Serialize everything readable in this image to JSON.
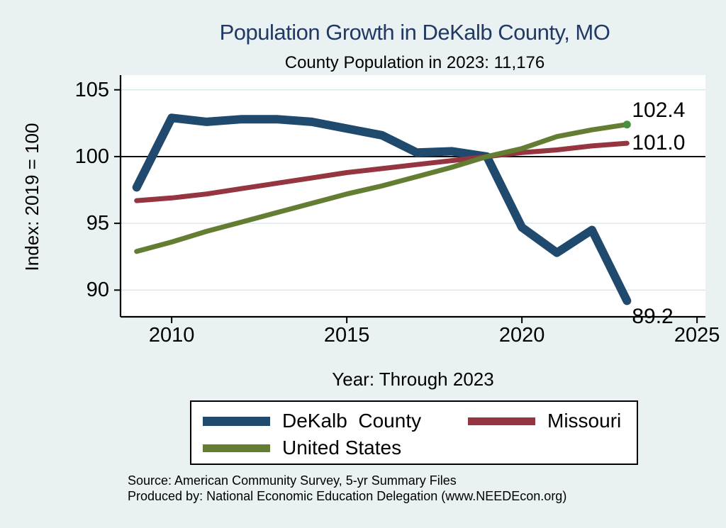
{
  "title": "Population Growth in DeKalb County, MO",
  "subtitle": "County Population in 2023: 11,176",
  "colors": {
    "background": "#eaf1f3",
    "plot_bg": "#ffffff",
    "gridline": "#dce8ec",
    "axis": "#000000",
    "title_text": "#203a64",
    "dekalb_blue": "#1f4a6e",
    "missouri_red": "#94353f",
    "us_green": "#637d33",
    "end_marker_green": "#4a8f3f"
  },
  "chart_data": {
    "type": "line",
    "x": [
      2009,
      2010,
      2011,
      2012,
      2013,
      2014,
      2015,
      2016,
      2017,
      2018,
      2019,
      2020,
      2021,
      2022,
      2023
    ],
    "series": [
      {
        "key": "dekalb-county",
        "name": "DeKalb  County",
        "color": "#1f4a6e",
        "values": [
          97.7,
          102.9,
          102.6,
          102.8,
          102.8,
          102.6,
          102.1,
          101.6,
          100.3,
          100.4,
          100.0,
          94.7,
          92.8,
          94.5,
          89.2
        ],
        "end_label": "89.2",
        "end_marker": false
      },
      {
        "key": "missouri",
        "name": "Missouri",
        "color": "#94353f",
        "values": [
          96.7,
          96.9,
          97.2,
          97.6,
          98.0,
          98.4,
          98.8,
          99.1,
          99.4,
          99.7,
          100.0,
          100.3,
          100.5,
          100.8,
          101.0
        ],
        "end_label": "101.0",
        "end_marker": false
      },
      {
        "key": "united-states",
        "name": "United States",
        "color": "#637d33",
        "values": [
          92.9,
          93.6,
          94.4,
          95.1,
          95.8,
          96.5,
          97.2,
          97.8,
          98.5,
          99.2,
          100.0,
          100.6,
          101.5,
          102.0,
          102.4
        ],
        "end_label": "102.4",
        "end_marker": true
      }
    ],
    "xlabel": "Year: Through 2023",
    "ylabel": "Index: 2019 = 100",
    "x_ticks": [
      "2010",
      "2015",
      "2020",
      "2025"
    ],
    "x_tick_values": [
      2010,
      2015,
      2020,
      2025
    ],
    "y_ticks": [
      "90",
      "95",
      "100",
      "105"
    ],
    "y_tick_values": [
      90,
      95,
      100,
      105
    ],
    "x_range": [
      2008.54,
      2025.24
    ],
    "y_range": [
      88.0,
      106.1
    ],
    "ref_line": 100,
    "grid": true,
    "legend_position": "bottom"
  },
  "legend": {
    "items": [
      {
        "label": "DeKalb  County"
      },
      {
        "label": "Missouri"
      },
      {
        "label": "United States"
      }
    ]
  },
  "source_line1": "Source: American Community Survey, 5-yr Summary Files",
  "source_line2": "Produced by: National Economic Education Delegation (www.NEEDEcon.org)"
}
